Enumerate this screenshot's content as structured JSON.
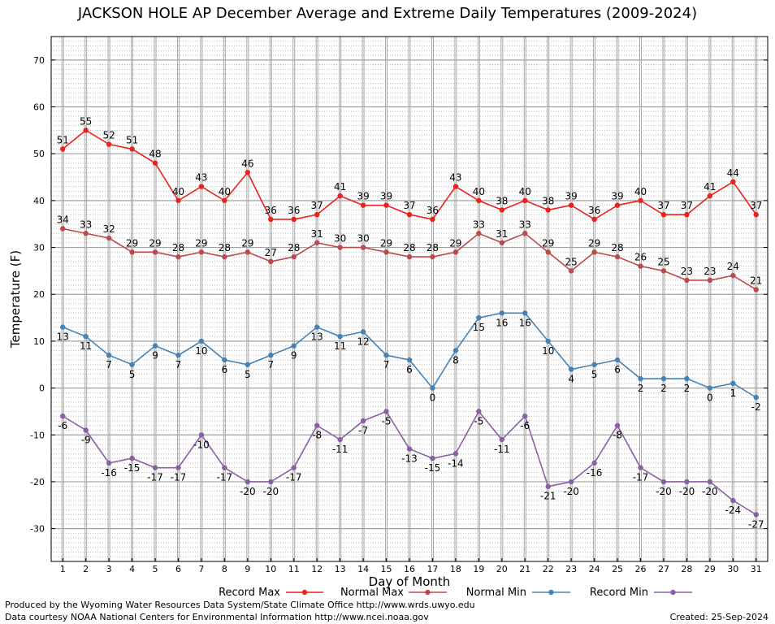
{
  "chart_data": {
    "type": "line",
    "title": "JACKSON HOLE AP December Average and Extreme Daily Temperatures (2009-2024)",
    "xlabel": "Day of Month",
    "ylabel": "Temperature (F)",
    "ylim": [
      -37,
      75
    ],
    "yticks": [
      -30,
      -20,
      -10,
      0,
      10,
      20,
      30,
      40,
      50,
      60,
      70
    ],
    "x": [
      1,
      2,
      3,
      4,
      5,
      6,
      7,
      8,
      9,
      10,
      11,
      12,
      13,
      14,
      15,
      16,
      17,
      18,
      19,
      20,
      21,
      22,
      23,
      24,
      25,
      26,
      27,
      28,
      29,
      30,
      31
    ],
    "grid": true,
    "legend_position": "bottom",
    "series": [
      {
        "name": "Record Max",
        "color": "#e8221d",
        "label_pos": "above",
        "values": [
          51,
          55,
          52,
          51,
          48,
          40,
          43,
          40,
          46,
          36,
          36,
          37,
          41,
          39,
          39,
          37,
          36,
          43,
          40,
          38,
          40,
          38,
          39,
          36,
          39,
          40,
          37,
          37,
          41,
          44,
          37
        ]
      },
      {
        "name": "Normal Max",
        "color": "#bc4a4a",
        "label_pos": "above",
        "values": [
          34,
          33,
          32,
          29,
          29,
          28,
          29,
          28,
          29,
          27,
          28,
          31,
          30,
          30,
          29,
          28,
          28,
          29,
          33,
          31,
          33,
          29,
          25,
          29,
          28,
          26,
          25,
          23,
          23,
          24,
          21
        ]
      },
      {
        "name": "Normal Min",
        "color": "#4682b4",
        "label_pos": "below",
        "values": [
          13,
          11,
          7,
          5,
          9,
          7,
          10,
          6,
          5,
          7,
          9,
          13,
          11,
          12,
          7,
          6,
          0,
          8,
          15,
          16,
          16,
          10,
          4,
          5,
          6,
          2,
          2,
          2,
          0,
          1,
          -2
        ]
      },
      {
        "name": "Record Min",
        "color": "#8a5fa5",
        "label_pos": "below",
        "values": [
          -6,
          -9,
          -16,
          -15,
          -17,
          -17,
          -10,
          -17,
          -20,
          -20,
          -17,
          -8,
          -11,
          -7,
          -5,
          -13,
          -15,
          -14,
          -5,
          -11,
          -6,
          -21,
          -20,
          -16,
          -8,
          -17,
          -20,
          -20,
          -20,
          -24,
          -27
        ]
      }
    ]
  },
  "footer": {
    "line1": "Produced by the Wyoming Water Resources Data System/State Climate Office http://www.wrds.uwyo.edu",
    "line2": "Data courtesy NOAA National Centers for Environmental Information http://www.ncei.noaa.gov",
    "created": "Created:  25-Sep-2024"
  }
}
